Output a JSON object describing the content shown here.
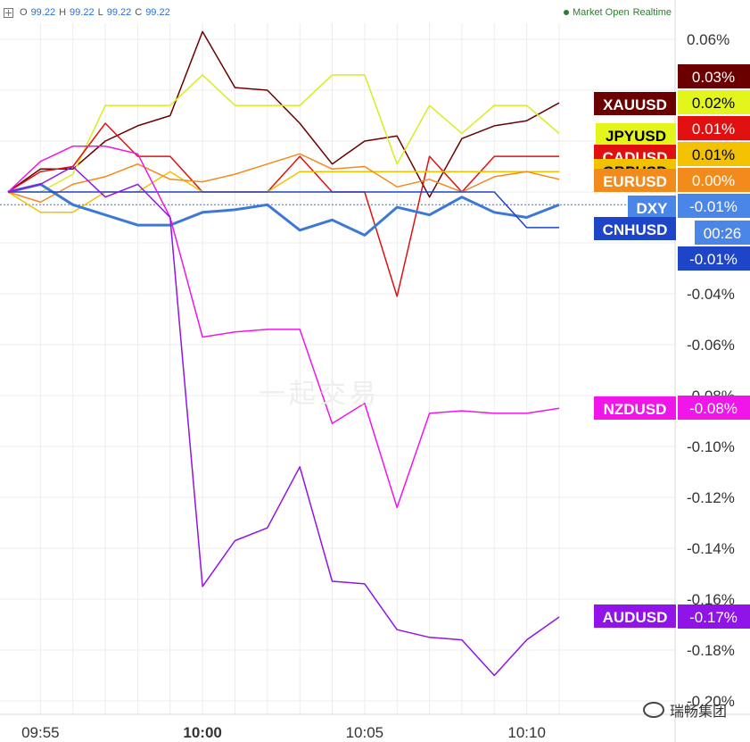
{
  "header": {
    "expand_icon": "plus-square-icon",
    "o_label": "O",
    "o_value": "99.22",
    "h_label": "H",
    "h_value": "99.22",
    "l_label": "L",
    "l_value": "99.22",
    "c_label": "C",
    "c_value": "99.22",
    "status": "Market Open",
    "realtime": "Realtime",
    "status_color": "#2e7d32"
  },
  "watermark": "一起交易",
  "wechat_label": "瑞畅集团",
  "time_badge": "00:26",
  "chart_data": {
    "type": "line",
    "title": "",
    "x_label": "",
    "y_label": "",
    "y_unit": "%",
    "x_range": [
      "09:54",
      "10:11"
    ],
    "y_range": [
      -0.2,
      0.07
    ],
    "x_ticks": [
      {
        "x": "09:55",
        "label": "09:55",
        "bold": false
      },
      {
        "x": "10:00",
        "label": "10:00",
        "bold": true
      },
      {
        "x": "10:05",
        "label": "10:05",
        "bold": false
      },
      {
        "x": "10:10",
        "label": "10:10",
        "bold": false
      }
    ],
    "y_ticks": [
      {
        "y": 0.06,
        "label": "0.06%"
      },
      {
        "y": -0.04,
        "label": "-0.04%"
      },
      {
        "y": -0.06,
        "label": "-0.06%"
      },
      {
        "y": -0.08,
        "label": "-0.08%"
      },
      {
        "y": -0.1,
        "label": "-0.10%"
      },
      {
        "y": -0.12,
        "label": "-0.12%"
      },
      {
        "y": -0.14,
        "label": "-0.14%"
      },
      {
        "y": -0.16,
        "label": "-0.16%"
      },
      {
        "y": -0.18,
        "label": "-0.18%"
      },
      {
        "y": -0.2,
        "label": "-0.20%"
      }
    ],
    "grid": true,
    "reference_line": -0.005,
    "x": [
      "09:54",
      "09:55",
      "09:56",
      "09:57",
      "09:58",
      "09:59",
      "10:00",
      "10:01",
      "10:02",
      "10:03",
      "10:04",
      "10:05",
      "10:06",
      "10:07",
      "10:08",
      "10:09",
      "10:10",
      "10:11"
    ],
    "series": [
      {
        "name": "XAUUSD",
        "color": "#6b0000",
        "width": 1.5,
        "badge_value": "0.03%",
        "badge_color": "#6b0000",
        "badge_text_color": "#ffffff",
        "label_color": "#6b0000",
        "label_text_color": "#ffffff",
        "values": [
          0,
          0.009,
          0.009,
          0.02,
          0.026,
          0.03,
          0.063,
          0.041,
          0.04,
          0.027,
          0.011,
          0.02,
          0.022,
          -0.002,
          0.021,
          0.026,
          0.028,
          0.035
        ]
      },
      {
        "name": "JPYUSD",
        "color": "#d7ee1e",
        "width": 1.5,
        "badge_value": "0.02%",
        "badge_color": "#e4f51b",
        "badge_text_color": "#000000",
        "label_color": "#e4f51b",
        "label_text_color": "#000000",
        "values": [
          0,
          0,
          0.007,
          0.034,
          0.034,
          0.034,
          0.046,
          0.034,
          0.034,
          0.034,
          0.046,
          0.046,
          0.011,
          0.034,
          0.023,
          0.034,
          0.034,
          0.023
        ]
      },
      {
        "name": "CADUSD",
        "color": "#e01010",
        "width": 1.5,
        "badge_value": "0.01%",
        "badge_color": "#e01010",
        "badge_text_color": "#ffffff",
        "label_color": "#e01010",
        "label_text_color": "#ffffff",
        "values": [
          0,
          0.008,
          0.01,
          0.027,
          0.014,
          0.014,
          0,
          0,
          0,
          0.014,
          0,
          0,
          -0.041,
          0.014,
          0,
          0.014,
          0.014,
          0.014
        ]
      },
      {
        "name": "GBPUSD",
        "color": "#f2c200",
        "width": 1.5,
        "badge_value": "0.01%",
        "badge_color": "#f2c200",
        "badge_text_color": "#000000",
        "label_color": "#f2c200",
        "label_text_color": "#000000",
        "values": [
          0,
          -0.008,
          -0.008,
          0,
          0,
          0.008,
          0,
          0,
          0,
          0.008,
          0.008,
          0.008,
          0.008,
          0.008,
          0.008,
          0.008,
          0.008,
          0.008
        ]
      },
      {
        "name": "EURUSD",
        "color": "#f28a1c",
        "width": 1.5,
        "badge_value": "0.00%",
        "badge_color": "#f28a1c",
        "badge_text_color": "#ffffff",
        "label_color": "#f28a1c",
        "label_text_color": "#ffffff",
        "values": [
          0,
          -0.004,
          0.003,
          0.006,
          0.011,
          0.005,
          0.004,
          0.007,
          0.011,
          0.015,
          0.009,
          0.01,
          0.002,
          0.005,
          0,
          0.006,
          0.008,
          0.005
        ]
      },
      {
        "name": "DXY",
        "color": "#3c78d8",
        "width": 3,
        "badge_value": "-0.01%",
        "badge_color": "#4a86e8",
        "badge_text_color": "#ffffff",
        "label_color": "#4a86e8",
        "label_text_color": "#ffffff",
        "values": [
          0,
          0.003,
          -0.005,
          -0.009,
          -0.013,
          -0.013,
          -0.008,
          -0.007,
          -0.005,
          -0.015,
          -0.011,
          -0.017,
          -0.006,
          -0.009,
          -0.002,
          -0.008,
          -0.01,
          -0.005
        ]
      },
      {
        "name": "CNHUSD",
        "color": "#1e44c8",
        "width": 1.5,
        "badge_value": "-0.01%",
        "badge_color": "#1e44c8",
        "badge_text_color": "#ffffff",
        "label_color": "#1e44c8",
        "label_text_color": "#ffffff",
        "values": [
          0,
          0,
          0,
          0,
          0,
          0,
          0,
          0,
          0,
          0,
          0,
          0,
          0,
          0,
          0,
          0,
          -0.014,
          -0.014
        ]
      },
      {
        "name": "NZDUSD",
        "color": "#f015e8",
        "width": 1.5,
        "badge_value": "-0.08%",
        "badge_color": "#f015e8",
        "badge_text_color": "#ffffff",
        "label_color": "#f015e8",
        "label_text_color": "#ffffff",
        "values": [
          0,
          0.012,
          0.018,
          0.018,
          0.015,
          -0.01,
          -0.057,
          -0.055,
          -0.054,
          -0.054,
          -0.091,
          -0.083,
          -0.124,
          -0.087,
          -0.086,
          -0.087,
          -0.087,
          -0.085
        ]
      },
      {
        "name": "AUDUSD",
        "color": "#9013e8",
        "width": 1.5,
        "badge_value": "-0.17%",
        "badge_color": "#9013e8",
        "badge_text_color": "#ffffff",
        "label_color": "#9013e8",
        "label_text_color": "#ffffff",
        "values": [
          0,
          0.003,
          0.01,
          -0.002,
          0.003,
          -0.01,
          -0.155,
          -0.137,
          -0.132,
          -0.108,
          -0.153,
          -0.154,
          -0.172,
          -0.175,
          -0.176,
          -0.19,
          -0.176,
          -0.167
        ]
      }
    ]
  }
}
